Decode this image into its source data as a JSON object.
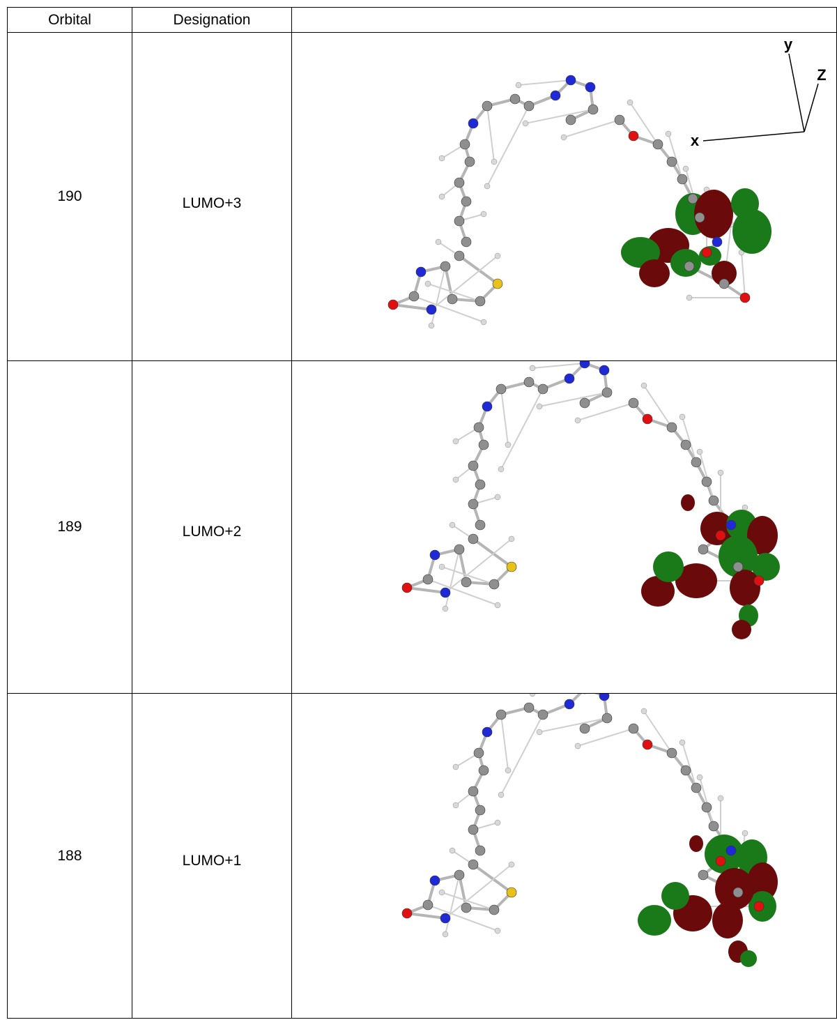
{
  "table": {
    "headers": [
      "Orbital",
      "Designation",
      ""
    ],
    "rows": [
      {
        "orbital": "190",
        "designation": "LUMO+3"
      },
      {
        "orbital": "189",
        "designation": "LUMO+2"
      },
      {
        "orbital": "188",
        "designation": "LUMO+1"
      }
    ]
  },
  "axes": {
    "x": "x",
    "y": "y",
    "z": "Z"
  },
  "colors": {
    "carbon": "#8f8f8f",
    "hydrogen": "#d9d9d9",
    "nitrogen": "#1f2ad6",
    "oxygen": "#e01010",
    "sulfur": "#e8c21a",
    "lobe_positive": "#1a7a1a",
    "lobe_negative": "#6b0a0a"
  }
}
